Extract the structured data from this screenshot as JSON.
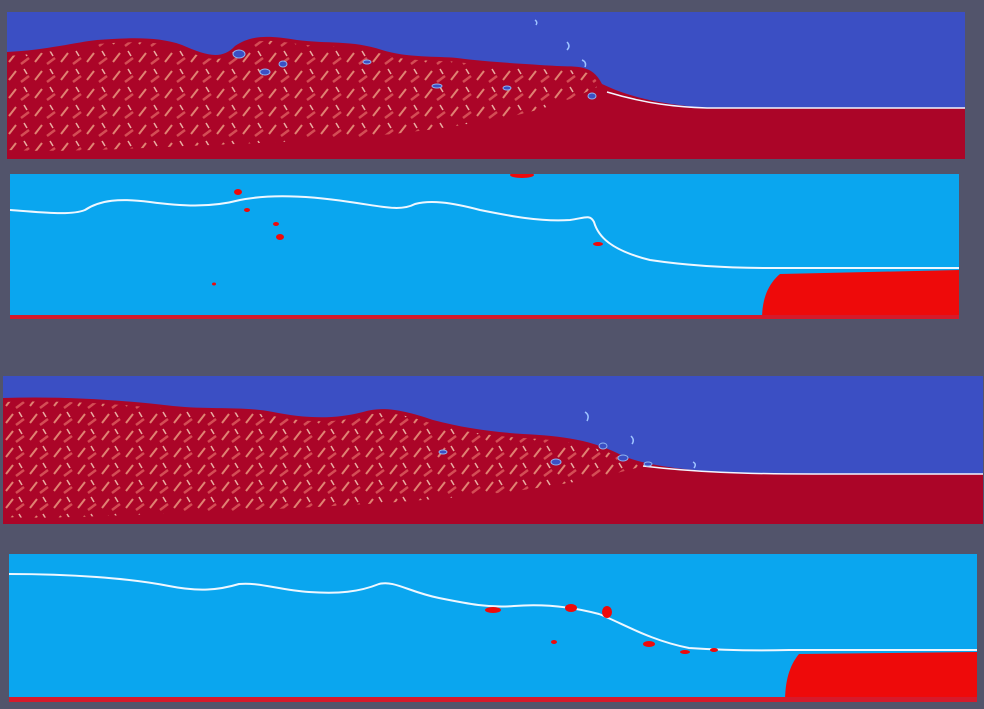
{
  "image": {
    "kind": "simulation-snapshots",
    "panel_count": 4,
    "panels": [
      {
        "name": "snapshot-1-vorticity-field",
        "colors": {
          "air": "#3b4fc4",
          "water": "#ab0528",
          "turbulence": "#f6b690"
        }
      },
      {
        "name": "snapshot-1-phase-field",
        "colors": {
          "air": "#0aa6ef",
          "water": "#ee0a0a",
          "interface": "#e8f4ff"
        }
      },
      {
        "name": "snapshot-2-vorticity-field",
        "colors": {
          "air": "#3b4fc4",
          "water": "#ab0528",
          "turbulence": "#f6b690"
        }
      },
      {
        "name": "snapshot-2-phase-field",
        "colors": {
          "air": "#0aa6ef",
          "water": "#ee0a0a",
          "interface": "#e8f4ff"
        }
      }
    ],
    "background": "#52546b"
  }
}
